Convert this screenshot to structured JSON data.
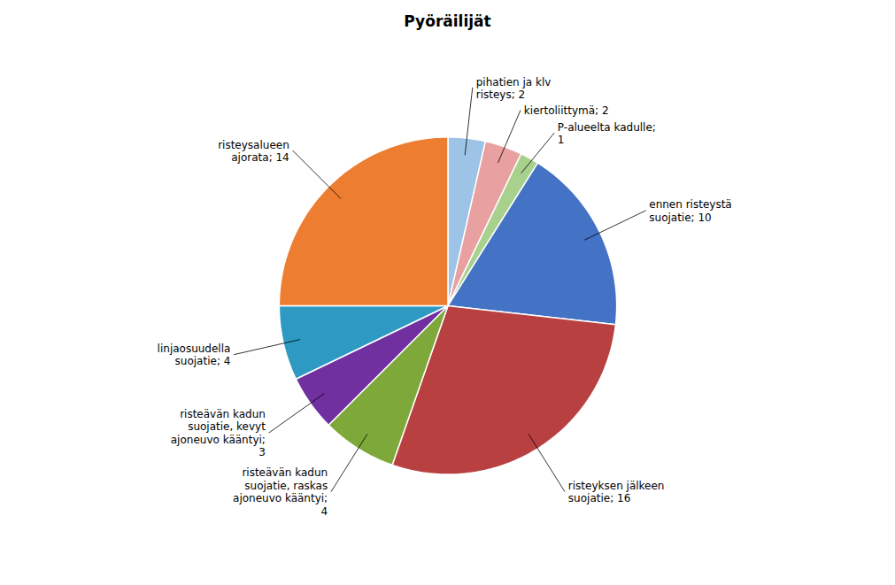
{
  "chart_data": {
    "type": "pie",
    "title": "Pyöräilijät",
    "categories": [
      "pihatien ja klv\nristeys; 2",
      "kiertoliittymä; 2",
      "P-alueelta kadulle;\n1",
      "ennen risteystä\nsuojatie; 10",
      "risteyksen jälkeen\nsuojatie; 16",
      "risteävän kadun\nsuojatie, raskas\najoneuvo kääntyi;\n4",
      "risteävän kadun\nsuojatie, kevyt\najoneuvo kääntyi;\n3",
      "linjaosuudella\nsuojatie; 4",
      "risteysalueen\najorata; 14"
    ],
    "values": [
      2,
      2,
      1,
      10,
      16,
      4,
      3,
      4,
      14
    ],
    "colors": [
      "#9DC3E6",
      "#E8A0A0",
      "#A9D18E",
      "#4472C4",
      "#B94040",
      "#7EA83A",
      "#7030A0",
      "#2E9AC4",
      "#ED7D31"
    ]
  }
}
